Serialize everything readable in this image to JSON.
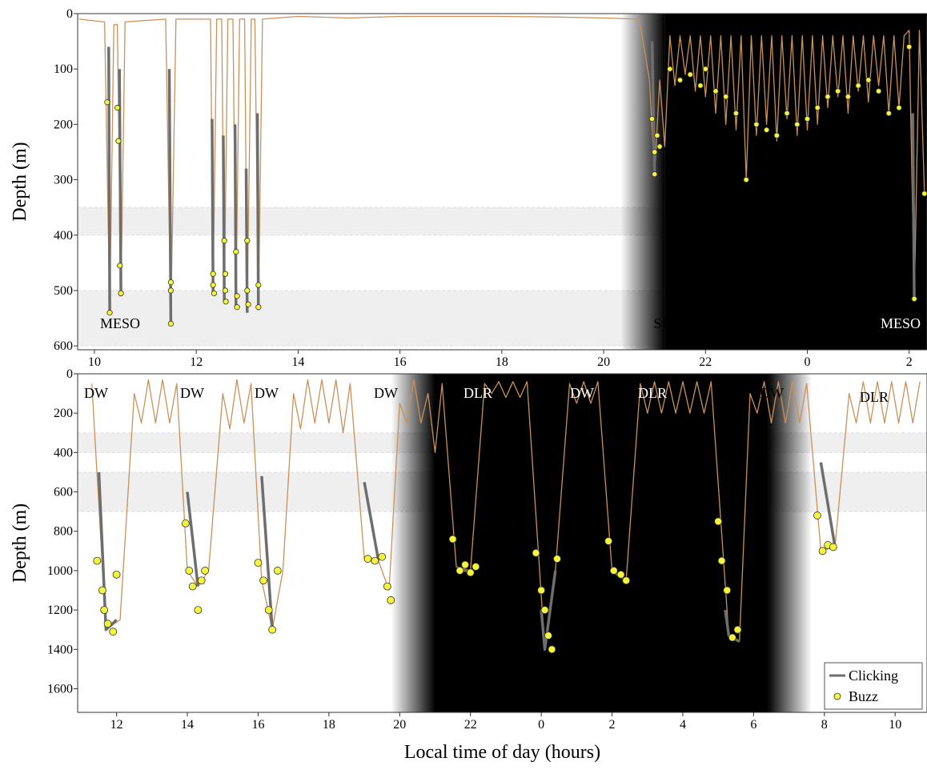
{
  "chart_data": [
    {
      "type": "line",
      "y_label": "Depth (m)",
      "xlim": [
        9.67,
        26.35
      ],
      "ylim": [
        0,
        607
      ],
      "y_inverted": true,
      "xticks": [
        10,
        12,
        14,
        16,
        18,
        20,
        22,
        {
          "value": 24,
          "label": "0"
        },
        {
          "value": 26,
          "label": "2"
        }
      ],
      "yticks": [
        0,
        100,
        200,
        300,
        400,
        500,
        600
      ],
      "depth_bands": [
        [
          350,
          400
        ],
        [
          500,
          600
        ]
      ],
      "band_color": "#efefef",
      "night": [
        21.2,
        26.35
      ],
      "annotations": [
        "MESO",
        "SH",
        "MESO"
      ],
      "profile": {
        "color": "#c8915a",
        "x": [
          9.7,
          10.2,
          10.3,
          10.38,
          10.45,
          10.52,
          10.6,
          11.4,
          11.5,
          11.6,
          12.28,
          12.33,
          12.4,
          12.5,
          12.55,
          12.62,
          12.72,
          12.78,
          12.85,
          12.95,
          13.0,
          13.08,
          13.15,
          13.22,
          13.3,
          14,
          15,
          16,
          17,
          18,
          19,
          20,
          20.7,
          20.9,
          21.0,
          21.1,
          21.2,
          21.3,
          21.4,
          21.5,
          21.6,
          21.7,
          21.8,
          21.9,
          22.0,
          22.1,
          22.2,
          22.3,
          22.4,
          22.5,
          22.6,
          22.7,
          22.8,
          22.9,
          23.0,
          23.1,
          23.2,
          23.3,
          23.4,
          23.5,
          23.6,
          23.7,
          23.8,
          23.9,
          24.0,
          24.1,
          24.2,
          24.3,
          24.4,
          24.5,
          24.6,
          24.7,
          24.8,
          24.9,
          25.0,
          25.1,
          25.2,
          25.3,
          25.4,
          25.5,
          25.6,
          25.7,
          25.8,
          25.9,
          26.0,
          26.1,
          26.2,
          26.3
        ],
        "values": [
          10,
          15,
          540,
          20,
          20,
          510,
          15,
          10,
          560,
          10,
          10,
          505,
          10,
          10,
          520,
          10,
          10,
          530,
          10,
          10,
          540,
          10,
          10,
          535,
          10,
          5,
          8,
          5,
          5,
          5,
          6,
          8,
          10,
          120,
          290,
          120,
          240,
          40,
          130,
          40,
          110,
          40,
          140,
          40,
          150,
          40,
          180,
          40,
          200,
          40,
          210,
          40,
          300,
          40,
          220,
          40,
          200,
          40,
          230,
          40,
          190,
          40,
          220,
          40,
          210,
          40,
          200,
          40,
          170,
          40,
          150,
          40,
          180,
          40,
          140,
          40,
          160,
          40,
          130,
          40,
          180,
          40,
          170,
          40,
          30,
          520,
          30,
          325
        ]
      },
      "series": [
        {
          "name": "Clicking",
          "color": "#6e6e6e",
          "mode": "line",
          "x": [
            10.28,
            10.3,
            10.3,
            10.49,
            10.52,
            10.52,
            11.47,
            11.5,
            11.5,
            12.31,
            12.33,
            12.33,
            12.53,
            12.55,
            12.55,
            12.76,
            12.78,
            12.78,
            12.98,
            13.0,
            13.0,
            13.2,
            13.22,
            13.22,
            20.95,
            21.0,
            21.0,
            26.07,
            26.1
          ],
          "values": [
            60,
            540,
            null,
            100,
            510,
            null,
            100,
            560,
            null,
            190,
            505,
            null,
            220,
            520,
            null,
            200,
            530,
            null,
            280,
            540,
            null,
            180,
            535,
            null,
            50,
            290,
            null,
            180,
            520
          ]
        },
        {
          "name": "Buzz",
          "color": "#f5f53c",
          "mode": "markers",
          "x": [
            10.25,
            10.3,
            10.45,
            10.47,
            10.5,
            10.52,
            11.5,
            11.5,
            11.5,
            12.33,
            12.33,
            12.35,
            12.55,
            12.57,
            12.57,
            12.58,
            12.78,
            12.8,
            12.8,
            13.0,
            13.0,
            13.02,
            13.22,
            13.22,
            20.95,
            21.0,
            21.0,
            21.05,
            21.1,
            21.3,
            21.5,
            21.7,
            21.9,
            22.0,
            22.2,
            22.4,
            22.6,
            22.8,
            23.0,
            23.2,
            23.4,
            23.6,
            23.8,
            24.0,
            24.2,
            24.4,
            24.6,
            24.8,
            25.0,
            25.2,
            25.4,
            25.6,
            25.8,
            26.0,
            26.1,
            26.3
          ],
          "values": [
            160,
            540,
            170,
            230,
            455,
            505,
            485,
            500,
            560,
            470,
            490,
            505,
            410,
            470,
            500,
            520,
            430,
            510,
            530,
            410,
            500,
            525,
            490,
            530,
            190,
            250,
            290,
            220,
            240,
            100,
            120,
            110,
            130,
            100,
            140,
            150,
            180,
            300,
            200,
            210,
            220,
            180,
            200,
            190,
            170,
            150,
            140,
            150,
            130,
            120,
            140,
            180,
            170,
            60,
            515,
            325
          ]
        }
      ]
    },
    {
      "type": "line",
      "y_label": "Depth (m)",
      "x_label": "Local time of day (hours)",
      "xlim": [
        10.9,
        34.9
      ],
      "ylim": [
        0,
        1720
      ],
      "y_inverted": true,
      "xticks": [
        12,
        14,
        16,
        18,
        20,
        22,
        {
          "value": 24,
          "label": "0"
        },
        {
          "value": 26,
          "label": "2"
        },
        {
          "value": 28,
          "label": "4"
        },
        {
          "value": 30,
          "label": "6"
        },
        {
          "value": 32,
          "label": "8"
        },
        {
          "value": 34,
          "label": "10"
        }
      ],
      "yticks": [
        0,
        200,
        400,
        600,
        800,
        1000,
        1200,
        1400,
        1600
      ],
      "depth_bands": [
        [
          300,
          400
        ],
        [
          500,
          700
        ]
      ],
      "band_color": "#efefef",
      "night": [
        21.0,
        30.4
      ],
      "legend": "lower right",
      "annotations": [
        "DW",
        "DW",
        "DW",
        "DW",
        "DLR",
        "DW",
        "DLR",
        "DW",
        "DLR"
      ],
      "profile": {
        "color": "#c8915a",
        "x": [
          11.3,
          11.7,
          12.1,
          12.5,
          12.7,
          12.9,
          13.1,
          13.3,
          13.5,
          13.7,
          14.0,
          14.3,
          14.6,
          15.0,
          15.2,
          15.4,
          15.6,
          15.8,
          16.1,
          16.4,
          16.7,
          17.0,
          17.2,
          17.4,
          17.6,
          17.8,
          18.0,
          18.2,
          18.4,
          18.6,
          19.0,
          19.4,
          19.7,
          20.0,
          20.2,
          20.4,
          20.6,
          20.8,
          21.0,
          21.2,
          21.6,
          22.0,
          22.4,
          22.6,
          22.8,
          23.0,
          23.2,
          23.4,
          23.6,
          24.1,
          24.4,
          24.8,
          25.0,
          25.2,
          25.4,
          25.6,
          26.0,
          26.4,
          26.8,
          27.0,
          27.2,
          27.4,
          27.6,
          27.8,
          28.0,
          28.2,
          28.4,
          28.6,
          28.8,
          29.3,
          29.6,
          29.9,
          30.1,
          30.3,
          30.5,
          30.7,
          30.9,
          31.1,
          31.3,
          31.5,
          31.9,
          32.3,
          32.7,
          32.9,
          33.1,
          33.3,
          33.5,
          33.7,
          33.9,
          34.1,
          34.3,
          34.5,
          34.7
        ],
        "values": [
          50,
          1300,
          1250,
          100,
          250,
          30,
          250,
          30,
          250,
          50,
          1000,
          1080,
          1000,
          100,
          280,
          30,
          250,
          50,
          1050,
          1300,
          1000,
          100,
          280,
          30,
          250,
          30,
          250,
          30,
          300,
          50,
          940,
          950,
          1100,
          150,
          250,
          30,
          250,
          100,
          400,
          50,
          980,
          1000,
          50,
          100,
          40,
          120,
          40,
          120,
          40,
          1400,
          1000,
          50,
          150,
          40,
          150,
          40,
          1000,
          1050,
          50,
          200,
          40,
          200,
          40,
          200,
          40,
          200,
          40,
          200,
          40,
          1330,
          1360,
          100,
          200,
          40,
          250,
          40,
          250,
          40,
          250,
          50,
          900,
          880,
          100,
          250,
          40,
          250,
          40,
          250,
          40,
          250,
          40,
          250,
          40
        ]
      },
      "series": [
        {
          "name": "Clicking",
          "color": "#6e6e6e",
          "mode": "line",
          "x": [
            11.5,
            11.7,
            12.0,
            12.0,
            14.0,
            14.3,
            14.3,
            16.1,
            16.4,
            16.4,
            19.0,
            19.4,
            19.4,
            21.6,
            22.0,
            22.0,
            24.0,
            24.1,
            24.4,
            24.4,
            26.0,
            26.4,
            26.4,
            29.2,
            29.3,
            29.6,
            29.6,
            31.9,
            32.3
          ],
          "values": [
            500,
            1300,
            1250,
            null,
            600,
            1080,
            null,
            520,
            1300,
            null,
            550,
            950,
            null,
            1000,
            1000,
            null,
            1200,
            1400,
            1000,
            null,
            1000,
            1050,
            null,
            1200,
            1330,
            1360,
            null,
            450,
            880
          ]
        },
        {
          "name": "Buzz",
          "color": "#f5f53c",
          "mode": "markers",
          "x": [
            11.45,
            11.6,
            11.65,
            11.75,
            11.9,
            12.0,
            13.95,
            14.05,
            14.15,
            14.3,
            14.4,
            14.5,
            16.0,
            16.15,
            16.3,
            16.4,
            16.55,
            19.1,
            19.3,
            19.5,
            19.65,
            19.75,
            21.5,
            21.7,
            21.85,
            22.0,
            22.15,
            23.85,
            24.0,
            24.1,
            24.2,
            24.3,
            24.45,
            25.9,
            26.05,
            26.25,
            26.4,
            29.0,
            29.1,
            29.25,
            29.4,
            29.55,
            31.8,
            31.95,
            32.1,
            32.25
          ],
          "values": [
            950,
            1100,
            1200,
            1270,
            1310,
            1020,
            760,
            1000,
            1080,
            1200,
            1050,
            1000,
            960,
            1050,
            1200,
            1300,
            1000,
            940,
            950,
            930,
            1080,
            1150,
            840,
            1000,
            970,
            1010,
            980,
            910,
            1100,
            1200,
            1330,
            1400,
            940,
            850,
            1000,
            1020,
            1050,
            750,
            950,
            1100,
            1340,
            1300,
            720,
            900,
            870,
            880
          ]
        }
      ]
    }
  ]
}
